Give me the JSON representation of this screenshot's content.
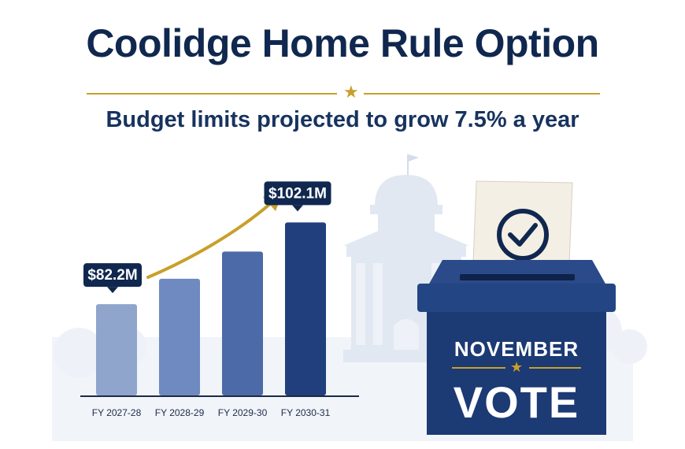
{
  "header": {
    "title": "Coolidge Home Rule Option",
    "subtitle": "Budget limits projected to grow 7.5% a year"
  },
  "ballot_box": {
    "line1": "NOVEMBER",
    "line2": "VOTE"
  },
  "colors": {
    "navy": "#10284f",
    "gold": "#c8a02a",
    "bar_shades": [
      "#8fa5cc",
      "#6f8ac0",
      "#4d6aa8",
      "#213f7c"
    ]
  },
  "icons": [
    "star-icon",
    "checkmark-icon",
    "upward-arrow-icon",
    "flag-icon"
  ],
  "chart_data": {
    "type": "bar",
    "categories": [
      "FY 2027-28",
      "FY 2028-29",
      "FY 2029-30",
      "FY 2030-31"
    ],
    "values": [
      82.2,
      88.4,
      95.0,
      102.1
    ],
    "data_labels": [
      "$82.2M",
      "",
      "",
      "$102.1M"
    ],
    "units": "$M",
    "title": "Budget limits projected to grow 7.5% a year",
    "xlabel": "",
    "ylabel": "",
    "ylim": [
      60,
      106
    ],
    "grid": false,
    "legend": "none"
  }
}
